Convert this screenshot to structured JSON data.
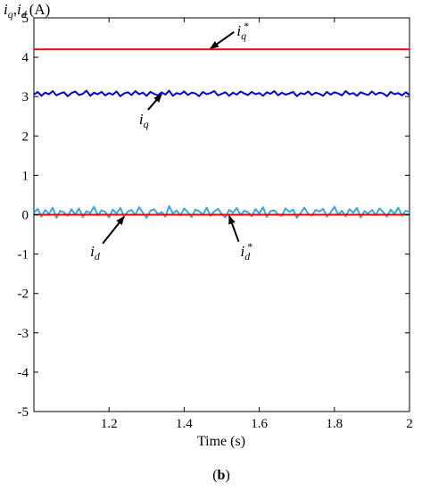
{
  "chart_data": {
    "type": "line",
    "ylabel": {
      "main1": "i",
      "sub1": "q",
      "sep": ",",
      "main2": "i",
      "sub2": "d",
      "unit": "(A)"
    },
    "xlabel": "Time (s)",
    "panel_label": {
      "open": "(",
      "letter": "b",
      "close": ")"
    },
    "xlim": [
      1.0,
      2.0
    ],
    "ylim": [
      -5,
      5
    ],
    "x_ticks": [
      1.2,
      1.4,
      1.6,
      1.8,
      2.0
    ],
    "x_tick_labels": [
      "1.2",
      "1.4",
      "1.6",
      "1.8",
      "2"
    ],
    "y_ticks": [
      -5,
      -4,
      -3,
      -2,
      -1,
      0,
      1,
      2,
      3,
      4,
      5
    ],
    "y_tick_labels": [
      "-5",
      "-4",
      "-3",
      "-2",
      "-1",
      "0",
      "1",
      "2",
      "3",
      "4",
      "5"
    ],
    "grid": false,
    "series": [
      {
        "key": "iq_ref",
        "color": "#ff0000",
        "x": [
          1.0,
          2.0
        ],
        "y": [
          4.2,
          4.2
        ]
      },
      {
        "key": "iq",
        "color": "#0000cc",
        "x_start": 1.0,
        "x_step": 0.01,
        "y": [
          3.05,
          3.12,
          3.02,
          3.1,
          3.06,
          3.14,
          3.03,
          3.08,
          3.11,
          3.01,
          3.09,
          3.13,
          3.04,
          3.07,
          3.15,
          3.02,
          3.1,
          3.06,
          3.12,
          3.03,
          3.09,
          3.05,
          3.13,
          3.01,
          3.08,
          3.11,
          3.04,
          3.14,
          3.06,
          3.1,
          3.02,
          3.12,
          3.07,
          3.03,
          3.11,
          3.05,
          3.15,
          3.02,
          3.09,
          3.06,
          3.13,
          3.04,
          3.1,
          3.08,
          3.01,
          3.12,
          3.06,
          3.09,
          3.14,
          3.03,
          3.07,
          3.11,
          3.02,
          3.1,
          3.05,
          3.13,
          3.08,
          3.04,
          3.12,
          3.06,
          3.09,
          3.02,
          3.11,
          3.07,
          3.14,
          3.03,
          3.1,
          3.05,
          3.08,
          3.12,
          3.01,
          3.09,
          3.06,
          3.13,
          3.04,
          3.1,
          3.07,
          3.02,
          3.12,
          3.05,
          3.11,
          3.08,
          3.03,
          3.14,
          3.06,
          3.09,
          3.02,
          3.11,
          3.07,
          3.04,
          3.13,
          3.05,
          3.1,
          3.08,
          3.01,
          3.12,
          3.06,
          3.09,
          3.03,
          3.11,
          3.04
        ]
      },
      {
        "key": "id",
        "color": "#33aadd",
        "x_start": 1.0,
        "x_step": 0.01,
        "y": [
          0.05,
          0.15,
          -0.05,
          0.12,
          0.02,
          0.18,
          -0.08,
          0.1,
          0.06,
          -0.03,
          0.14,
          0.0,
          0.16,
          -0.06,
          0.09,
          0.04,
          0.2,
          -0.02,
          0.11,
          0.07,
          -0.07,
          0.13,
          0.03,
          0.17,
          -0.04,
          0.08,
          0.12,
          -0.01,
          0.19,
          0.05,
          -0.08,
          0.1,
          0.14,
          0.01,
          0.07,
          -0.05,
          0.22,
          0.03,
          0.11,
          -0.02,
          0.16,
          0.06,
          -0.06,
          0.13,
          0.09,
          0.0,
          0.18,
          -0.03,
          0.08,
          0.15,
          0.02,
          -0.07,
          0.12,
          0.05,
          0.17,
          -0.01,
          0.1,
          0.06,
          -0.04,
          0.14,
          0.03,
          0.19,
          -0.06,
          0.09,
          0.11,
          0.01,
          -0.03,
          0.16,
          0.07,
          0.13,
          -0.08,
          0.04,
          0.18,
          0.02,
          -0.02,
          0.12,
          0.08,
          0.15,
          -0.05,
          0.06,
          0.2,
          0.0,
          0.1,
          -0.04,
          0.14,
          0.05,
          0.17,
          -0.07,
          0.09,
          0.03,
          0.12,
          -0.01,
          0.16,
          0.06,
          -0.05,
          0.13,
          0.02,
          0.18,
          -0.03,
          0.1,
          0.07
        ]
      },
      {
        "key": "id_ref",
        "color": "#ff0000",
        "x": [
          1.0,
          2.0
        ],
        "y": [
          0.0,
          0.0
        ]
      }
    ],
    "annotations": [
      {
        "key": "iq_ref",
        "main": "i",
        "sub": "q",
        "sup": "*",
        "text_x": 1.54,
        "text_y": 4.55,
        "arrow_to": [
          1.47,
          4.22
        ]
      },
      {
        "key": "iq",
        "main": "i",
        "sub": "q",
        "sup": "",
        "text_x": 1.28,
        "text_y": 2.3,
        "arrow_to": [
          1.34,
          3.06
        ]
      },
      {
        "key": "id",
        "main": "i",
        "sub": "d",
        "sup": "",
        "text_x": 1.15,
        "text_y": -1.05,
        "arrow_to": [
          1.24,
          -0.05
        ]
      },
      {
        "key": "id_ref",
        "main": "i",
        "sub": "d",
        "sup": "*",
        "text_x": 1.55,
        "text_y": -1.05,
        "arrow_to": [
          1.52,
          -0.03
        ]
      }
    ]
  }
}
